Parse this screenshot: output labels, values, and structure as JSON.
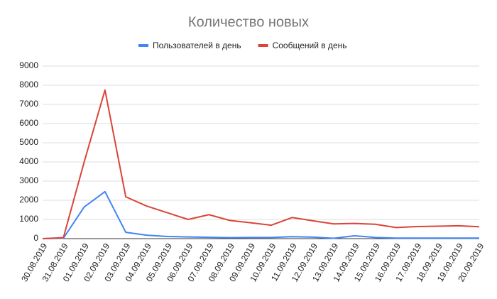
{
  "chart_data": {
    "type": "line",
    "title": "Количество новых",
    "categories": [
      "30.08.2019",
      "31.08.2019",
      "01.09.2019",
      "02.09.2019",
      "03.09.2019",
      "04.09.2019",
      "05.09.2019",
      "06.09.2019",
      "07.09.2019",
      "08.09.2019",
      "09.09.2019",
      "10.09.2019",
      "11.09.2019",
      "12.09.2019",
      "13.09.2019",
      "14.09.2019",
      "15.09.2019",
      "16.09.2019",
      "17.09.2019",
      "18.09.2019",
      "19.09.2019",
      "20.09.2019"
    ],
    "series": [
      {
        "name": "Пользователей в день",
        "color": "#4285f4",
        "values": [
          0,
          20,
          1650,
          2450,
          330,
          180,
          110,
          90,
          70,
          50,
          60,
          60,
          100,
          80,
          20,
          150,
          60,
          30,
          30,
          30,
          30,
          30
        ]
      },
      {
        "name": "Сообщений в день",
        "color": "#db4437",
        "values": [
          0,
          50,
          4000,
          7750,
          2180,
          1700,
          1350,
          1000,
          1250,
          950,
          830,
          700,
          1100,
          930,
          770,
          790,
          750,
          580,
          630,
          650,
          670,
          620
        ]
      }
    ],
    "ylim": [
      0,
      9000
    ],
    "yticks": [
      0,
      1000,
      2000,
      3000,
      4000,
      5000,
      6000,
      7000,
      8000,
      9000
    ],
    "grid": true
  }
}
